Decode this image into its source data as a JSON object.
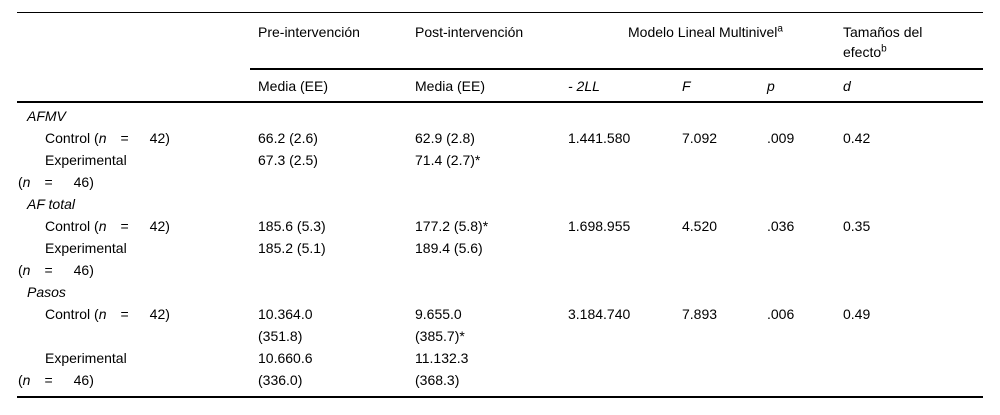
{
  "header": {
    "pre": "Pre-intervención",
    "post": "Post-intervención",
    "model": "Modelo Lineal Multinivel",
    "model_sup": "a",
    "effect_line1": "Tamaños del",
    "effect_line2": "efecto",
    "effect_sup": "b",
    "media_pre": "Media (EE)",
    "media_post": "Media (EE)",
    "stat_2ll": "- 2LL",
    "stat_f": "F",
    "stat_p": "p",
    "stat_d": "d"
  },
  "rows": [
    {
      "type": "section",
      "label": "AFMV"
    },
    {
      "type": "data",
      "label_lines": [
        [
          {
            "t": "Control ("
          },
          {
            "t": "n",
            "i": true
          },
          {
            "t": "  =   42)"
          }
        ]
      ],
      "pre": [
        "66.2 (2.6)"
      ],
      "post": [
        "62.9 (2.8)"
      ],
      "ll": [
        "1.441.580"
      ],
      "f": [
        "7.092"
      ],
      "p": [
        ".009"
      ],
      "d": [
        "0.42"
      ]
    },
    {
      "type": "data",
      "label_lines": [
        [
          {
            "t": "Experimental"
          }
        ],
        [
          {
            "t": "("
          },
          {
            "t": "n",
            "i": true
          },
          {
            "t": "  =   46)"
          }
        ]
      ],
      "pre": [
        "67.3 (2.5)"
      ],
      "post": [
        "71.4 (2.7)*"
      ],
      "ll": [],
      "f": [],
      "p": [],
      "d": []
    },
    {
      "type": "section",
      "label": "AF total"
    },
    {
      "type": "data",
      "label_lines": [
        [
          {
            "t": "Control ("
          },
          {
            "t": "n",
            "i": true
          },
          {
            "t": "  =   42)"
          }
        ]
      ],
      "pre": [
        "185.6 (5.3)"
      ],
      "post": [
        "177.2 (5.8)*"
      ],
      "ll": [
        "1.698.955"
      ],
      "f": [
        "4.520"
      ],
      "p": [
        ".036"
      ],
      "d": [
        "0.35"
      ]
    },
    {
      "type": "data",
      "label_lines": [
        [
          {
            "t": "Experimental"
          }
        ],
        [
          {
            "t": "("
          },
          {
            "t": "n",
            "i": true
          },
          {
            "t": "  =   46)"
          }
        ]
      ],
      "pre": [
        "185.2 (5.1)"
      ],
      "post": [
        "189.4 (5.6)"
      ],
      "ll": [],
      "f": [],
      "p": [],
      "d": []
    },
    {
      "type": "section",
      "label": "Pasos"
    },
    {
      "type": "data",
      "label_lines": [
        [
          {
            "t": "Control ("
          },
          {
            "t": "n",
            "i": true
          },
          {
            "t": "  =   42)"
          }
        ]
      ],
      "pre": [
        "10.364.0",
        "(351.8)"
      ],
      "post": [
        "9.655.0",
        "(385.7)*"
      ],
      "ll": [
        "3.184.740"
      ],
      "f": [
        "7.893"
      ],
      "p": [
        ".006"
      ],
      "d": [
        "0.49"
      ]
    },
    {
      "type": "data",
      "label_lines": [
        [
          {
            "t": "Experimental"
          }
        ],
        [
          {
            "t": "("
          },
          {
            "t": "n",
            "i": true
          },
          {
            "t": "  =   46)"
          }
        ]
      ],
      "pre": [
        "10.660.6",
        "(336.0)"
      ],
      "post": [
        "11.132.3",
        "(368.3)"
      ],
      "ll": [],
      "f": [],
      "p": [],
      "d": []
    }
  ]
}
